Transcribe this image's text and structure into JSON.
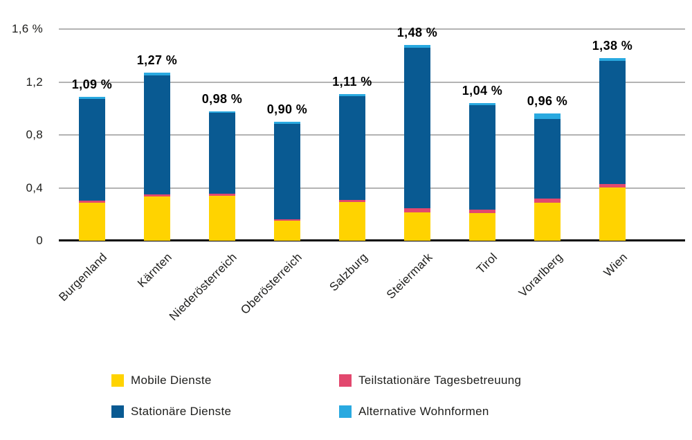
{
  "chart_data": {
    "type": "bar",
    "stacked": true,
    "unit": "%",
    "categories": [
      "Burgenland",
      "Kärnten",
      "Niederösterreich",
      "Oberösterreich",
      "Salzburg",
      "Steiermark",
      "Tirol",
      "Vorarlberg",
      "Wien"
    ],
    "series": [
      {
        "name": "Mobile Dienste",
        "color": "#FFD300",
        "values": [
          0.29,
          0.335,
          0.34,
          0.15,
          0.295,
          0.215,
          0.21,
          0.29,
          0.4
        ]
      },
      {
        "name": "Teilstationäre Tagesbetreuung",
        "color": "#E2486E",
        "values": [
          0.015,
          0.015,
          0.015,
          0.013,
          0.015,
          0.03,
          0.026,
          0.03,
          0.027
        ]
      },
      {
        "name": "Stationäre Dienste",
        "color": "#095A92",
        "values": [
          0.765,
          0.9,
          0.61,
          0.722,
          0.785,
          1.215,
          0.789,
          0.6,
          0.933
        ]
      },
      {
        "name": "Alternative Wohnformen",
        "color": "#29A9E0",
        "values": [
          0.02,
          0.02,
          0.015,
          0.015,
          0.015,
          0.02,
          0.015,
          0.04,
          0.02
        ]
      }
    ],
    "totals": [
      1.09,
      1.27,
      0.98,
      0.9,
      1.11,
      1.48,
      1.04,
      0.96,
      1.38
    ],
    "total_labels": [
      "1,09 %",
      "1,27 %",
      "0,98 %",
      "0,90 %",
      "1,11 %",
      "1,48 %",
      "1,04 %",
      "0,96 %",
      "1,38 %"
    ],
    "ylim": [
      0,
      1.6
    ],
    "yticks": [
      {
        "value": 1.6,
        "label": "1,6 %"
      },
      {
        "value": 1.2,
        "label": "1,2"
      },
      {
        "value": 0.8,
        "label": "0,8"
      },
      {
        "value": 0.4,
        "label": "0,4"
      },
      {
        "value": 0,
        "label": "0"
      }
    ],
    "grid": true,
    "legend_position": "bottom"
  },
  "colors": {
    "grid": "#b3b3b3",
    "axis": "#000000",
    "text": "#1d1d1b"
  }
}
